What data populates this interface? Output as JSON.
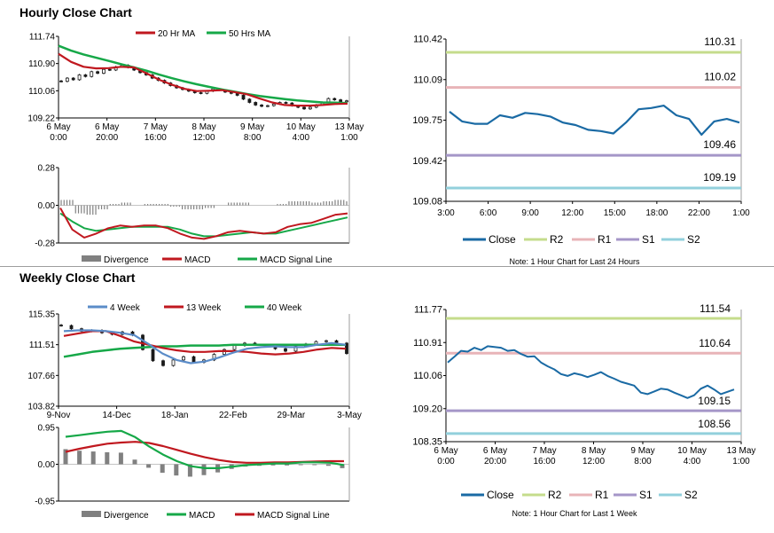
{
  "sections": {
    "hourly_title": "Hourly Close Chart",
    "weekly_title": "Weekly Close Chart"
  },
  "colors": {
    "red": "#c0181f",
    "green": "#16a848",
    "blue_ma": "#5b8cc8",
    "close": "#1a6aa4",
    "r2": "#c5dc8c",
    "r1": "#e8b4b8",
    "s1": "#a596c8",
    "s2": "#92d0dc",
    "divergence": "#808080",
    "candle": "#1a1a1a"
  },
  "chart_data": [
    {
      "id": "hourly-price",
      "type": "candlestick",
      "legend": [
        "20 Hr MA",
        "50 Hrs MA"
      ],
      "y_ticks": [
        "111.74",
        "110.90",
        "110.06",
        "109.22"
      ],
      "ylim": [
        109.22,
        111.74
      ],
      "x_tick_labels": [
        [
          "6 May",
          "0:00"
        ],
        [
          "6 May",
          "20:00"
        ],
        [
          "7 May",
          "16:00"
        ],
        [
          "8 May",
          "12:00"
        ],
        [
          "9 May",
          "8:00"
        ],
        [
          "10 May",
          "4:00"
        ],
        [
          "13 May",
          "1:00"
        ]
      ],
      "close_series": [
        110.35,
        110.45,
        110.4,
        110.55,
        110.5,
        110.65,
        110.6,
        110.72,
        110.7,
        110.8,
        110.85,
        110.78,
        110.7,
        110.62,
        110.55,
        110.45,
        110.38,
        110.3,
        110.22,
        110.15,
        110.1,
        110.05,
        110.0,
        109.98,
        110.05,
        110.12,
        110.08,
        110.02,
        109.98,
        109.92,
        109.8,
        109.7,
        109.62,
        109.58,
        109.6,
        109.65,
        109.7,
        109.68,
        109.6,
        109.55,
        109.5,
        109.55,
        109.62,
        109.7,
        109.82,
        109.78,
        109.72,
        109.75
      ],
      "ma20": [
        111.2,
        110.95,
        110.8,
        110.75,
        110.76,
        110.8,
        110.78,
        110.6,
        110.4,
        110.25,
        110.12,
        110.05,
        110.06,
        110.08,
        110.02,
        109.95,
        109.82,
        109.7,
        109.62,
        109.6,
        109.6,
        109.62,
        109.65,
        109.66
      ],
      "ma50": [
        111.45,
        111.3,
        111.18,
        111.08,
        110.98,
        110.88,
        110.78,
        110.68,
        110.56,
        110.45,
        110.35,
        110.26,
        110.18,
        110.1,
        110.03,
        109.96,
        109.9,
        109.85,
        109.8,
        109.76,
        109.73,
        109.7,
        109.69,
        109.68
      ]
    },
    {
      "id": "hourly-macd",
      "type": "line",
      "y_ticks": [
        "0.28",
        "0.00",
        "-0.28"
      ],
      "ylim": [
        -0.28,
        0.28
      ],
      "legend": [
        "Divergence",
        "MACD",
        "MACD Signal Line"
      ],
      "macd": [
        -0.02,
        -0.18,
        -0.24,
        -0.21,
        -0.17,
        -0.15,
        -0.16,
        -0.15,
        -0.15,
        -0.17,
        -0.21,
        -0.24,
        -0.25,
        -0.23,
        -0.2,
        -0.19,
        -0.2,
        -0.21,
        -0.2,
        -0.16,
        -0.14,
        -0.13,
        -0.1,
        -0.07,
        -0.06
      ],
      "signal": [
        -0.06,
        -0.12,
        -0.17,
        -0.19,
        -0.18,
        -0.17,
        -0.16,
        -0.16,
        -0.16,
        -0.16,
        -0.18,
        -0.21,
        -0.23,
        -0.23,
        -0.22,
        -0.21,
        -0.2,
        -0.21,
        -0.21,
        -0.19,
        -0.17,
        -0.15,
        -0.13,
        -0.11,
        -0.09
      ],
      "divergence": [
        0.04,
        -0.06,
        -0.07,
        -0.03,
        0.01,
        0.02,
        0.0,
        0.01,
        0.01,
        -0.01,
        -0.03,
        -0.03,
        -0.02,
        0.0,
        0.02,
        0.02,
        0.0,
        0.0,
        0.01,
        0.03,
        0.03,
        0.02,
        0.03,
        0.04,
        0.03
      ]
    },
    {
      "id": "hourly-pivot",
      "type": "line",
      "y_ticks": [
        "110.42",
        "110.09",
        "109.75",
        "109.42",
        "109.08"
      ],
      "ylim": [
        109.08,
        110.42
      ],
      "x_ticks": [
        "3:00",
        "6:00",
        "9:00",
        "12:00",
        "15:00",
        "18:00",
        "22:00",
        "1:00"
      ],
      "levels": [
        {
          "name": "R2",
          "value": 110.31,
          "label": "110.31"
        },
        {
          "name": "R1",
          "value": 110.02,
          "label": "110.02"
        },
        {
          "name": "S1",
          "value": 109.46,
          "label": "109.46"
        },
        {
          "name": "S2",
          "value": 109.19,
          "label": "109.19"
        }
      ],
      "close": [
        109.82,
        109.74,
        109.72,
        109.72,
        109.79,
        109.77,
        109.81,
        109.8,
        109.78,
        109.73,
        109.71,
        109.67,
        109.66,
        109.64,
        109.73,
        109.84,
        109.85,
        109.87,
        109.79,
        109.76,
        109.63,
        109.74,
        109.76,
        109.73
      ],
      "legend": [
        "Close",
        "R2",
        "R1",
        "S1",
        "S2"
      ],
      "note": "Note: 1 Hour Chart for Last 24 Hours"
    },
    {
      "id": "weekly-price",
      "type": "candlestick",
      "legend": [
        "4 Week",
        "13 Week",
        "40 Week"
      ],
      "y_ticks": [
        "115.35",
        "111.51",
        "107.66",
        "103.82"
      ],
      "ylim": [
        103.82,
        115.35
      ],
      "x_ticks": [
        "9-Nov",
        "14-Dec",
        "18-Jan",
        "22-Feb",
        "29-Mar",
        "3-May"
      ],
      "close_series": [
        113.9,
        113.5,
        113.2,
        113.3,
        113.0,
        112.8,
        113.1,
        112.7,
        110.9,
        109.5,
        108.9,
        109.6,
        110.0,
        109.3,
        109.6,
        110.3,
        110.9,
        111.4,
        111.7,
        111.5,
        111.4,
        111.0,
        110.7,
        111.3,
        111.6,
        111.9,
        112.0,
        111.7,
        110.4
      ],
      "ma4": [
        113.2,
        113.3,
        113.3,
        113.2,
        113.0,
        112.7,
        111.6,
        110.4,
        109.6,
        109.2,
        109.4,
        109.9,
        110.5,
        111.0,
        111.2,
        111.3,
        111.2,
        111.2,
        111.5,
        111.7,
        111.5
      ],
      "ma13": [
        112.6,
        112.9,
        113.2,
        113.2,
        112.6,
        111.9,
        111.5,
        111.1,
        110.8,
        110.6,
        110.6,
        110.7,
        110.7,
        110.6,
        110.4,
        110.3,
        110.4,
        110.6,
        110.9,
        111.1,
        111.0
      ],
      "ma40": [
        110.0,
        110.3,
        110.6,
        110.8,
        111.0,
        111.1,
        111.2,
        111.3,
        111.3,
        111.4,
        111.4,
        111.4,
        111.5,
        111.5,
        111.5,
        111.5,
        111.5,
        111.5,
        111.5,
        111.5,
        111.5
      ]
    },
    {
      "id": "weekly-macd",
      "type": "line",
      "y_ticks": [
        "0.95",
        "0.00",
        "-0.95"
      ],
      "ylim": [
        -0.95,
        0.95
      ],
      "legend": [
        "Divergence",
        "MACD",
        "MACD Signal Line"
      ],
      "macd": [
        0.71,
        0.75,
        0.8,
        0.84,
        0.86,
        0.7,
        0.46,
        0.25,
        0.08,
        -0.05,
        -0.1,
        -0.1,
        -0.06,
        -0.02,
        0.0,
        0.02,
        0.02,
        0.05,
        0.05,
        0.04,
        -0.02
      ],
      "signal": [
        0.32,
        0.4,
        0.47,
        0.53,
        0.56,
        0.58,
        0.55,
        0.47,
        0.37,
        0.27,
        0.18,
        0.11,
        0.06,
        0.04,
        0.04,
        0.05,
        0.05,
        0.06,
        0.07,
        0.08,
        0.08
      ],
      "divergence": [
        0.39,
        0.35,
        0.33,
        0.31,
        0.3,
        0.12,
        -0.09,
        -0.22,
        -0.29,
        -0.32,
        -0.28,
        -0.21,
        -0.12,
        -0.06,
        -0.04,
        -0.03,
        -0.03,
        -0.01,
        -0.02,
        -0.04,
        -0.1
      ]
    },
    {
      "id": "weekly-pivot",
      "type": "line",
      "y_ticks": [
        "111.77",
        "110.91",
        "110.06",
        "109.20",
        "108.35"
      ],
      "ylim": [
        108.35,
        111.77
      ],
      "x_tick_labels": [
        [
          "6 May",
          "0:00"
        ],
        [
          "6 May",
          "20:00"
        ],
        [
          "7 May",
          "16:00"
        ],
        [
          "8 May",
          "12:00"
        ],
        [
          "9 May",
          "8:00"
        ],
        [
          "10 May",
          "4:00"
        ],
        [
          "13 May",
          "1:00"
        ]
      ],
      "levels": [
        {
          "name": "R2",
          "value": 111.54,
          "label": "111.54"
        },
        {
          "name": "R1",
          "value": 110.64,
          "label": "110.64"
        },
        {
          "name": "S1",
          "value": 109.15,
          "label": "109.15"
        },
        {
          "name": "S2",
          "value": 108.56,
          "label": "108.56"
        }
      ],
      "close": [
        110.4,
        110.55,
        110.7,
        110.68,
        110.78,
        110.72,
        110.82,
        110.8,
        110.78,
        110.7,
        110.72,
        110.62,
        110.55,
        110.56,
        110.4,
        110.3,
        110.22,
        110.1,
        110.05,
        110.12,
        110.08,
        110.02,
        110.08,
        110.15,
        110.05,
        109.98,
        109.9,
        109.85,
        109.8,
        109.62,
        109.58,
        109.65,
        109.72,
        109.7,
        109.62,
        109.55,
        109.48,
        109.55,
        109.72,
        109.8,
        109.7,
        109.58,
        109.64,
        109.7
      ],
      "legend": [
        "Close",
        "R2",
        "R1",
        "S1",
        "S2"
      ],
      "note": "Note: 1 Hour Chart for Last 1 Week"
    }
  ]
}
